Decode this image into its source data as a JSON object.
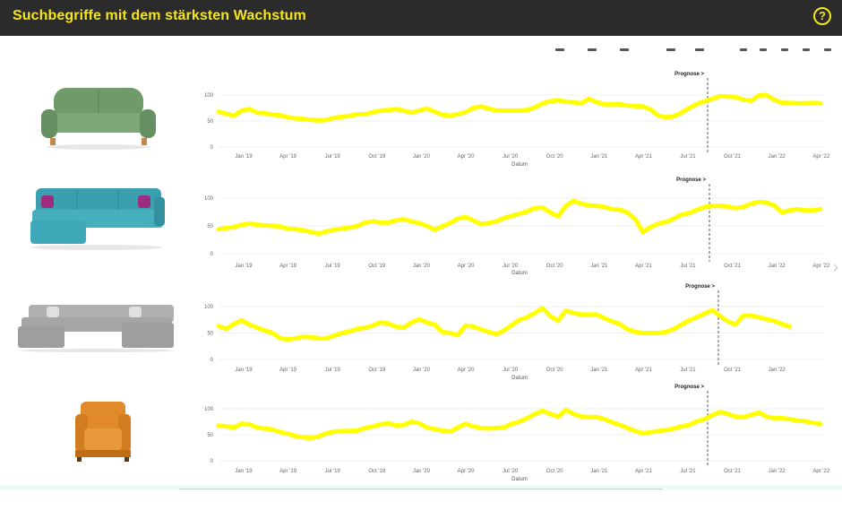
{
  "header": {
    "title": "Suchbegriffe mit dem stärksten Wachstum",
    "help_icon": "question-circle-icon",
    "accent_color": "#f5e61c",
    "background_color": "#2b2b2b"
  },
  "products": [
    {
      "name": "sofa-icon",
      "color": "#6f9b6a"
    },
    {
      "name": "corner-sofa-icon",
      "color": "#3aa0b0"
    },
    {
      "name": "u-shaped-sofa-icon",
      "color": "#a9a9a9"
    },
    {
      "name": "armchair-icon",
      "color": "#e08a2a"
    }
  ],
  "chart_data": [
    {
      "type": "line",
      "title": "",
      "xlabel": "Datum",
      "ylabel": "",
      "forecast_label": "Prognose >",
      "forecast_start": "2021-09",
      "ylim": [
        0,
        100
      ],
      "yticks": [
        "100",
        "50",
        "0"
      ],
      "xticks": [
        "Jan '19",
        "Apr '19",
        "Jul '19",
        "Oct '19",
        "Jan '20",
        "Apr '20",
        "Jul '20",
        "Oct '20",
        "Jan '21",
        "Apr '21",
        "Jul '21",
        "Oct '21",
        "Jan '22",
        "Apr '22"
      ],
      "grid": true,
      "line_color": "#ffff00",
      "x": [
        0,
        0.5,
        1,
        1.5,
        2,
        2.5,
        3,
        3.5,
        4,
        4.5,
        5,
        5.5,
        6,
        6.5,
        7,
        7.5,
        8,
        8.5,
        9,
        9.5,
        10,
        10.5,
        11,
        11.5,
        12,
        12.5,
        13,
        13.5,
        14,
        14.5,
        15,
        15.5,
        16,
        16.5,
        17,
        17.5,
        18,
        18.5,
        19,
        19.5,
        20,
        20.5,
        21,
        21.5,
        22,
        22.5,
        23,
        23.5,
        24,
        24.5,
        25,
        25.5,
        26,
        26.5,
        27,
        27.5,
        28,
        28.5,
        29,
        29.5,
        30,
        30.5,
        31,
        31.5,
        32,
        32.5,
        33,
        33.5,
        34,
        34.5,
        35,
        35.5,
        36,
        36.5,
        37,
        37.5,
        38,
        38.5,
        39
      ],
      "values": [
        68,
        64,
        60,
        70,
        73,
        66,
        65,
        62,
        61,
        57,
        55,
        54,
        52,
        51,
        52,
        56,
        58,
        60,
        63,
        63,
        67,
        70,
        71,
        73,
        70,
        66,
        70,
        74,
        68,
        62,
        60,
        63,
        67,
        75,
        78,
        74,
        70,
        70,
        70,
        70,
        71,
        76,
        84,
        88,
        90,
        87,
        86,
        84,
        93,
        86,
        82,
        82,
        82,
        80,
        79,
        78,
        72,
        60,
        57,
        59,
        66,
        75,
        83,
        88,
        93,
        98,
        97,
        96,
        91,
        89,
        99,
        100,
        91,
        85,
        85,
        84,
        84,
        85,
        84
      ]
    },
    {
      "type": "line",
      "title": "",
      "xlabel": "Datum",
      "ylabel": "",
      "forecast_label": "Prognose >",
      "forecast_start": "2021-09",
      "ylim": [
        0,
        100
      ],
      "yticks": [
        "100",
        "50",
        "0"
      ],
      "xticks": [
        "Jan '19",
        "Apr '19",
        "Jul '19",
        "Oct '19",
        "Jan '20",
        "Apr '20",
        "Jul '20",
        "Oct '20",
        "Jan '21",
        "Apr '21",
        "Jul '21",
        "Oct '21",
        "Jan '22",
        "Apr '22"
      ],
      "grid": true,
      "line_color": "#ffff00",
      "x": [
        0,
        0.5,
        1,
        1.5,
        2,
        2.5,
        3,
        3.5,
        4,
        4.5,
        5,
        5.5,
        6,
        6.5,
        7,
        7.5,
        8,
        8.5,
        9,
        9.5,
        10,
        10.5,
        11,
        11.5,
        12,
        12.5,
        13,
        13.5,
        14,
        14.5,
        15,
        15.5,
        16,
        16.5,
        17,
        17.5,
        18,
        18.5,
        19,
        19.5,
        20,
        20.5,
        21,
        21.5,
        22,
        22.5,
        23,
        23.5,
        24,
        24.5,
        25,
        25.5,
        26,
        26.5,
        27,
        27.5,
        28,
        28.5,
        29,
        29.5,
        30,
        30.5,
        31,
        31.5,
        32,
        32.5,
        33,
        33.5,
        34,
        34.5,
        35,
        35.5,
        36,
        36.5,
        37,
        37.5,
        38,
        38.5,
        39
      ],
      "values": [
        44,
        46,
        48,
        52,
        54,
        52,
        51,
        50,
        49,
        45,
        44,
        42,
        39,
        36,
        40,
        43,
        45,
        47,
        50,
        56,
        58,
        56,
        56,
        60,
        62,
        58,
        55,
        50,
        43,
        49,
        55,
        63,
        66,
        60,
        53,
        55,
        58,
        64,
        68,
        72,
        76,
        82,
        83,
        74,
        67,
        86,
        95,
        90,
        87,
        86,
        84,
        80,
        79,
        74,
        62,
        39,
        48,
        54,
        57,
        63,
        70,
        73,
        79,
        84,
        86,
        86,
        85,
        82,
        84,
        90,
        93,
        92,
        87,
        74,
        78,
        80,
        78,
        78,
        80
      ]
    },
    {
      "type": "line",
      "title": "",
      "xlabel": "Datum",
      "ylabel": "",
      "forecast_label": "Prognose >",
      "forecast_start": "2021-09",
      "ylim": [
        0,
        100
      ],
      "yticks": [
        "100",
        "50",
        "0"
      ],
      "xticks": [
        "Jan '19",
        "Apr '19",
        "Jul '19",
        "Oct '19",
        "Jan '20",
        "Apr '20",
        "Jul '20",
        "Oct '20",
        "Jan '21",
        "Apr '21",
        "Jul '21",
        "Oct '21",
        "Jan '22"
      ],
      "grid": true,
      "line_color": "#ffff00",
      "x": [
        0,
        0.5,
        1,
        1.5,
        2,
        2.5,
        3,
        3.5,
        4,
        4.5,
        5,
        5.5,
        6,
        6.5,
        7,
        7.5,
        8,
        8.5,
        9,
        9.5,
        10,
        10.5,
        11,
        11.5,
        12,
        12.5,
        13,
        13.5,
        14,
        14.5,
        15,
        15.5,
        16,
        16.5,
        17,
        17.5,
        18,
        18.5,
        19,
        19.5,
        20,
        20.5,
        21,
        21.5,
        22,
        22.5,
        23,
        23.5,
        24,
        24.5,
        25,
        25.5,
        26,
        26.5,
        27,
        27.5,
        28,
        28.5,
        29,
        29.5,
        30,
        30.5,
        31,
        31.5,
        32,
        32.5,
        33,
        33.5,
        34,
        34.5,
        35,
        35.5,
        36,
        36.5,
        37
      ],
      "values": [
        63,
        58,
        67,
        74,
        66,
        60,
        55,
        50,
        40,
        38,
        40,
        43,
        42,
        40,
        40,
        45,
        50,
        53,
        58,
        60,
        64,
        70,
        68,
        62,
        60,
        70,
        76,
        70,
        66,
        52,
        50,
        46,
        64,
        62,
        57,
        52,
        48,
        55,
        65,
        75,
        80,
        88,
        97,
        82,
        73,
        92,
        88,
        85,
        85,
        85,
        78,
        72,
        67,
        57,
        52,
        50,
        50,
        50,
        52,
        58,
        66,
        74,
        80,
        87,
        93,
        82,
        72,
        66,
        83,
        83,
        80,
        76,
        73,
        67,
        62
      ]
    },
    {
      "type": "line",
      "title": "",
      "xlabel": "Datum",
      "ylabel": "",
      "forecast_label": "Prognose >",
      "forecast_start": "2021-09",
      "ylim": [
        0,
        100
      ],
      "yticks": [
        "100",
        "50",
        "0"
      ],
      "xticks": [
        "Jan '19",
        "Apr '19",
        "Jul '19",
        "Oct '19",
        "Jan '20",
        "Apr '20",
        "Jul '20",
        "Oct '20",
        "Jan '21",
        "Apr '21",
        "Jul '21",
        "Oct '21",
        "Jan '22",
        "Apr '22"
      ],
      "grid": true,
      "line_color": "#ffff00",
      "x": [
        0,
        0.5,
        1,
        1.5,
        2,
        2.5,
        3,
        3.5,
        4,
        4.5,
        5,
        5.5,
        6,
        6.5,
        7,
        7.5,
        8,
        8.5,
        9,
        9.5,
        10,
        10.5,
        11,
        11.5,
        12,
        12.5,
        13,
        13.5,
        14,
        14.5,
        15,
        15.5,
        16,
        16.5,
        17,
        17.5,
        18,
        18.5,
        19,
        19.5,
        20,
        20.5,
        21,
        21.5,
        22,
        22.5,
        23,
        23.5,
        24,
        24.5,
        25,
        25.5,
        26,
        26.5,
        27,
        27.5,
        28,
        28.5,
        29,
        29.5,
        30,
        30.5,
        31,
        31.5,
        32,
        32.5,
        33,
        33.5,
        34,
        34.5,
        35,
        35.5,
        36,
        36.5,
        37,
        37.5,
        38,
        38.5,
        39
      ],
      "values": [
        68,
        66,
        64,
        71,
        70,
        64,
        62,
        60,
        55,
        52,
        47,
        45,
        44,
        47,
        53,
        56,
        57,
        57,
        58,
        63,
        66,
        70,
        72,
        68,
        69,
        75,
        72,
        64,
        61,
        58,
        56,
        64,
        71,
        66,
        63,
        62,
        63,
        64,
        71,
        75,
        82,
        90,
        96,
        90,
        85,
        98,
        90,
        85,
        84,
        84,
        80,
        74,
        69,
        63,
        57,
        53,
        55,
        57,
        59,
        62,
        66,
        69,
        76,
        80,
        88,
        94,
        90,
        85,
        84,
        88,
        93,
        85,
        82,
        82,
        80,
        77,
        76,
        73,
        71
      ]
    }
  ]
}
